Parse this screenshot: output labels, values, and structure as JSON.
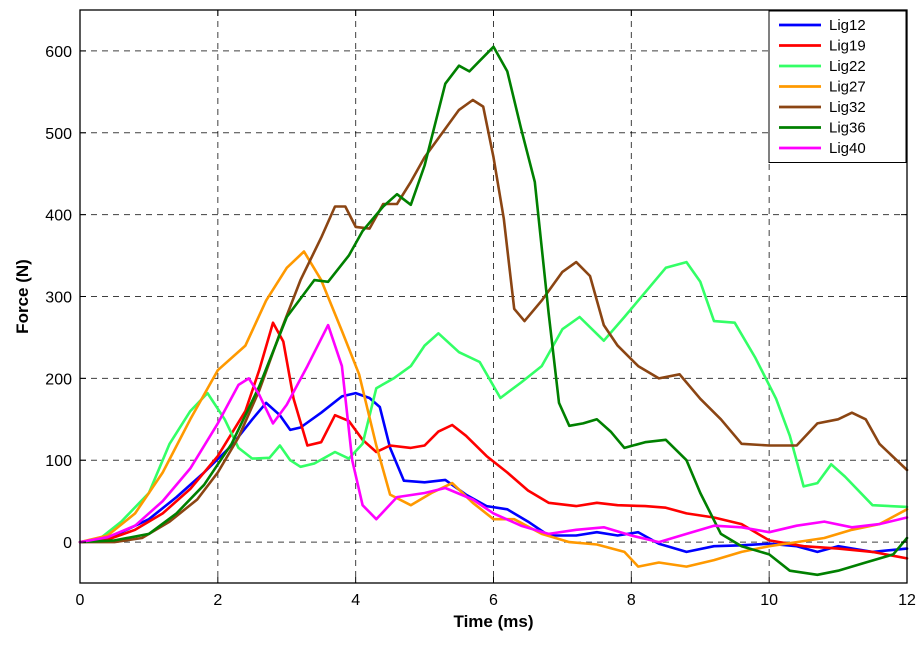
{
  "chart_data": {
    "type": "line",
    "xlabel": "Time (ms)",
    "ylabel": "Force (N)",
    "xlim": [
      0,
      12
    ],
    "ylim": [
      -50,
      650
    ],
    "x_ticks": [
      0,
      2,
      4,
      6,
      8,
      10,
      12
    ],
    "y_ticks": [
      0,
      100,
      200,
      300,
      400,
      500,
      600
    ],
    "x_tick_labels": [
      "0",
      "2",
      "4",
      "6",
      "8",
      "10",
      "12"
    ],
    "y_tick_labels": [
      "0",
      "100",
      "200",
      "300",
      "400",
      "500",
      "600"
    ],
    "grid": true,
    "legend_position": "top-right",
    "series": [
      {
        "name": "Lig12",
        "color": "#0000ff",
        "points": [
          [
            0,
            0
          ],
          [
            0.3,
            2
          ],
          [
            0.6,
            12
          ],
          [
            1,
            28
          ],
          [
            1.4,
            55
          ],
          [
            1.8,
            85
          ],
          [
            2.2,
            118
          ],
          [
            2.5,
            150
          ],
          [
            2.7,
            170
          ],
          [
            2.9,
            155
          ],
          [
            3.05,
            137
          ],
          [
            3.2,
            140
          ],
          [
            3.5,
            158
          ],
          [
            3.8,
            178
          ],
          [
            4,
            182
          ],
          [
            4.2,
            176
          ],
          [
            4.35,
            165
          ],
          [
            4.5,
            115
          ],
          [
            4.7,
            75
          ],
          [
            5,
            73
          ],
          [
            5.3,
            76
          ],
          [
            5.6,
            58
          ],
          [
            5.9,
            44
          ],
          [
            6.2,
            40
          ],
          [
            6.5,
            25
          ],
          [
            6.8,
            8
          ],
          [
            7.2,
            8
          ],
          [
            7.5,
            12
          ],
          [
            7.8,
            8
          ],
          [
            8.1,
            12
          ],
          [
            8.4,
            -2
          ],
          [
            8.8,
            -12
          ],
          [
            9.2,
            -5
          ],
          [
            9.6,
            -4
          ],
          [
            10,
            -2
          ],
          [
            10.4,
            -5
          ],
          [
            10.7,
            -12
          ],
          [
            11,
            -5
          ],
          [
            11.5,
            -12
          ],
          [
            12,
            -8
          ]
        ]
      },
      {
        "name": "Lig19",
        "color": "#ff0000",
        "points": [
          [
            0,
            0
          ],
          [
            0.4,
            3
          ],
          [
            0.8,
            15
          ],
          [
            1.2,
            35
          ],
          [
            1.6,
            65
          ],
          [
            2,
            105
          ],
          [
            2.4,
            160
          ],
          [
            2.6,
            210
          ],
          [
            2.8,
            268
          ],
          [
            2.95,
            245
          ],
          [
            3.1,
            175
          ],
          [
            3.3,
            118
          ],
          [
            3.5,
            122
          ],
          [
            3.7,
            155
          ],
          [
            3.9,
            148
          ],
          [
            4.1,
            125
          ],
          [
            4.3,
            110
          ],
          [
            4.5,
            118
          ],
          [
            4.8,
            115
          ],
          [
            5,
            118
          ],
          [
            5.2,
            135
          ],
          [
            5.4,
            143
          ],
          [
            5.6,
            130
          ],
          [
            5.9,
            105
          ],
          [
            6.2,
            85
          ],
          [
            6.5,
            63
          ],
          [
            6.8,
            48
          ],
          [
            7.2,
            44
          ],
          [
            7.5,
            48
          ],
          [
            7.8,
            45
          ],
          [
            8.2,
            44
          ],
          [
            8.5,
            42
          ],
          [
            8.8,
            35
          ],
          [
            9.2,
            30
          ],
          [
            9.6,
            22
          ],
          [
            10,
            2
          ],
          [
            10.5,
            -5
          ],
          [
            11,
            -8
          ],
          [
            11.5,
            -12
          ],
          [
            12,
            -20
          ]
        ]
      },
      {
        "name": "Lig22",
        "color": "#33ff66",
        "points": [
          [
            0,
            0
          ],
          [
            0.3,
            5
          ],
          [
            0.6,
            25
          ],
          [
            1,
            60
          ],
          [
            1.3,
            120
          ],
          [
            1.6,
            160
          ],
          [
            1.85,
            182
          ],
          [
            2.1,
            150
          ],
          [
            2.3,
            115
          ],
          [
            2.5,
            102
          ],
          [
            2.75,
            103
          ],
          [
            2.9,
            118
          ],
          [
            3.05,
            100
          ],
          [
            3.2,
            92
          ],
          [
            3.4,
            96
          ],
          [
            3.7,
            110
          ],
          [
            3.9,
            102
          ],
          [
            4.1,
            120
          ],
          [
            4.3,
            188
          ],
          [
            4.55,
            200
          ],
          [
            4.8,
            215
          ],
          [
            5,
            240
          ],
          [
            5.2,
            255
          ],
          [
            5.5,
            232
          ],
          [
            5.8,
            220
          ],
          [
            6.1,
            176
          ],
          [
            6.4,
            195
          ],
          [
            6.7,
            215
          ],
          [
            7,
            260
          ],
          [
            7.25,
            275
          ],
          [
            7.6,
            246
          ],
          [
            7.9,
            275
          ],
          [
            8.2,
            305
          ],
          [
            8.5,
            335
          ],
          [
            8.8,
            342
          ],
          [
            9,
            318
          ],
          [
            9.2,
            270
          ],
          [
            9.5,
            268
          ],
          [
            9.8,
            225
          ],
          [
            10.1,
            175
          ],
          [
            10.3,
            130
          ],
          [
            10.5,
            68
          ],
          [
            10.7,
            72
          ],
          [
            10.9,
            95
          ],
          [
            11.1,
            80
          ],
          [
            11.5,
            45
          ],
          [
            12,
            43
          ]
        ]
      },
      {
        "name": "Lig27",
        "color": "#ff9900",
        "points": [
          [
            0,
            0
          ],
          [
            0.4,
            8
          ],
          [
            0.8,
            35
          ],
          [
            1.2,
            85
          ],
          [
            1.6,
            150
          ],
          [
            2,
            210
          ],
          [
            2.4,
            240
          ],
          [
            2.7,
            295
          ],
          [
            3,
            335
          ],
          [
            3.25,
            355
          ],
          [
            3.5,
            320
          ],
          [
            3.8,
            258
          ],
          [
            4.05,
            205
          ],
          [
            4.3,
            118
          ],
          [
            4.5,
            58
          ],
          [
            4.8,
            45
          ],
          [
            5.1,
            60
          ],
          [
            5.4,
            72
          ],
          [
            5.7,
            48
          ],
          [
            6,
            28
          ],
          [
            6.3,
            28
          ],
          [
            6.7,
            10
          ],
          [
            7.1,
            0
          ],
          [
            7.5,
            -3
          ],
          [
            7.9,
            -12
          ],
          [
            8.1,
            -30
          ],
          [
            8.4,
            -25
          ],
          [
            8.8,
            -30
          ],
          [
            9.2,
            -22
          ],
          [
            9.6,
            -12
          ],
          [
            10,
            -5
          ],
          [
            10.4,
            0
          ],
          [
            10.8,
            5
          ],
          [
            11.2,
            15
          ],
          [
            11.6,
            22
          ],
          [
            12,
            40
          ]
        ]
      },
      {
        "name": "Lig32",
        "color": "#8b4513",
        "points": [
          [
            0,
            0
          ],
          [
            0.5,
            0
          ],
          [
            0.9,
            5
          ],
          [
            1.3,
            25
          ],
          [
            1.7,
            52
          ],
          [
            2,
            85
          ],
          [
            2.3,
            128
          ],
          [
            2.6,
            185
          ],
          [
            2.9,
            255
          ],
          [
            3.2,
            320
          ],
          [
            3.5,
            372
          ],
          [
            3.7,
            410
          ],
          [
            3.85,
            410
          ],
          [
            4,
            385
          ],
          [
            4.2,
            383
          ],
          [
            4.4,
            413
          ],
          [
            4.6,
            413
          ],
          [
            4.8,
            440
          ],
          [
            5,
            470
          ],
          [
            5.3,
            505
          ],
          [
            5.5,
            528
          ],
          [
            5.7,
            540
          ],
          [
            5.85,
            532
          ],
          [
            6,
            470
          ],
          [
            6.15,
            395
          ],
          [
            6.3,
            285
          ],
          [
            6.45,
            270
          ],
          [
            6.7,
            295
          ],
          [
            7,
            330
          ],
          [
            7.2,
            342
          ],
          [
            7.4,
            325
          ],
          [
            7.6,
            265
          ],
          [
            7.8,
            240
          ],
          [
            8.1,
            215
          ],
          [
            8.4,
            200
          ],
          [
            8.7,
            205
          ],
          [
            9,
            175
          ],
          [
            9.3,
            150
          ],
          [
            9.6,
            120
          ],
          [
            10,
            118
          ],
          [
            10.4,
            118
          ],
          [
            10.7,
            145
          ],
          [
            11,
            150
          ],
          [
            11.2,
            158
          ],
          [
            11.4,
            150
          ],
          [
            11.6,
            120
          ],
          [
            12,
            88
          ]
        ]
      },
      {
        "name": "Lig36",
        "color": "#008000",
        "points": [
          [
            0,
            0
          ],
          [
            0.5,
            2
          ],
          [
            1,
            10
          ],
          [
            1.4,
            35
          ],
          [
            1.8,
            70
          ],
          [
            2.2,
            120
          ],
          [
            2.6,
            190
          ],
          [
            3,
            275
          ],
          [
            3.4,
            320
          ],
          [
            3.6,
            318
          ],
          [
            3.9,
            350
          ],
          [
            4.1,
            380
          ],
          [
            4.4,
            410
          ],
          [
            4.6,
            425
          ],
          [
            4.8,
            412
          ],
          [
            5,
            460
          ],
          [
            5.3,
            560
          ],
          [
            5.5,
            582
          ],
          [
            5.65,
            575
          ],
          [
            5.8,
            588
          ],
          [
            6,
            605
          ],
          [
            6.2,
            575
          ],
          [
            6.4,
            505
          ],
          [
            6.6,
            440
          ],
          [
            6.8,
            280
          ],
          [
            6.95,
            170
          ],
          [
            7.1,
            142
          ],
          [
            7.3,
            145
          ],
          [
            7.5,
            150
          ],
          [
            7.7,
            135
          ],
          [
            7.9,
            115
          ],
          [
            8.2,
            122
          ],
          [
            8.5,
            125
          ],
          [
            8.8,
            100
          ],
          [
            9,
            60
          ],
          [
            9.3,
            10
          ],
          [
            9.6,
            -5
          ],
          [
            10,
            -15
          ],
          [
            10.3,
            -35
          ],
          [
            10.7,
            -40
          ],
          [
            11,
            -35
          ],
          [
            11.4,
            -25
          ],
          [
            11.8,
            -15
          ],
          [
            12,
            5
          ]
        ]
      },
      {
        "name": "Lig40",
        "color": "#ff00ff",
        "points": [
          [
            0,
            0
          ],
          [
            0.4,
            6
          ],
          [
            0.8,
            20
          ],
          [
            1.2,
            50
          ],
          [
            1.6,
            90
          ],
          [
            2,
            145
          ],
          [
            2.3,
            192
          ],
          [
            2.45,
            200
          ],
          [
            2.6,
            180
          ],
          [
            2.8,
            145
          ],
          [
            3,
            168
          ],
          [
            3.3,
            215
          ],
          [
            3.6,
            265
          ],
          [
            3.8,
            215
          ],
          [
            3.95,
            100
          ],
          [
            4.1,
            45
          ],
          [
            4.3,
            28
          ],
          [
            4.6,
            55
          ],
          [
            5,
            60
          ],
          [
            5.3,
            66
          ],
          [
            5.7,
            52
          ],
          [
            6,
            35
          ],
          [
            6.4,
            20
          ],
          [
            6.8,
            10
          ],
          [
            7.2,
            15
          ],
          [
            7.6,
            18
          ],
          [
            8,
            8
          ],
          [
            8.4,
            0
          ],
          [
            8.8,
            10
          ],
          [
            9.2,
            20
          ],
          [
            9.6,
            18
          ],
          [
            10,
            12
          ],
          [
            10.4,
            20
          ],
          [
            10.8,
            25
          ],
          [
            11.2,
            18
          ],
          [
            11.6,
            22
          ],
          [
            12,
            30
          ]
        ]
      }
    ]
  }
}
